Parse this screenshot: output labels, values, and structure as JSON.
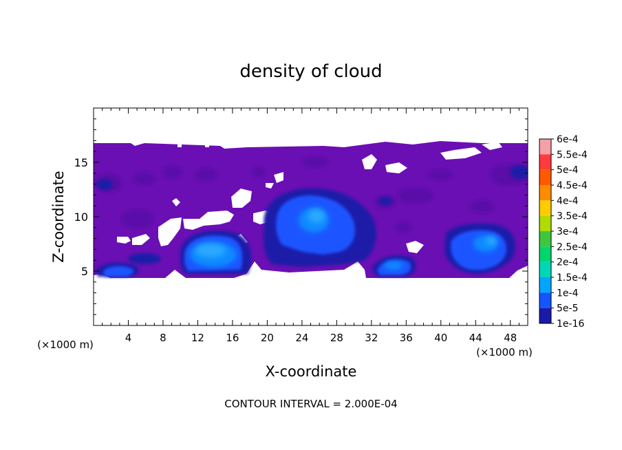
{
  "chart_data": {
    "type": "heatmap",
    "title": "density of cloud",
    "xlabel": "X-coordinate",
    "ylabel": "Z-coordinate",
    "x_unit_left": "(×1000 m)",
    "x_unit_right": "(×1000 m)",
    "footer": "CONTOUR INTERVAL = 2.000E-04",
    "xlim": [
      0,
      50
    ],
    "ylim": [
      0,
      20
    ],
    "x_ticks": [
      4,
      8,
      12,
      16,
      20,
      24,
      28,
      32,
      36,
      40,
      44,
      48
    ],
    "y_ticks": [
      5,
      10,
      15
    ],
    "colorbar": {
      "levels": [
        {
          "label": "6e-4",
          "color": "#f5a0a8"
        },
        {
          "label": "5.5e-4",
          "color": "#ff3b3b"
        },
        {
          "label": "5e-4",
          "color": "#ff5a00"
        },
        {
          "label": "4.5e-4",
          "color": "#ff8c00"
        },
        {
          "label": "4e-4",
          "color": "#ffcc00"
        },
        {
          "label": "3.5e-4",
          "color": "#b0dc00"
        },
        {
          "label": "3e-4",
          "color": "#3fc63f"
        },
        {
          "label": "2.5e-4",
          "color": "#00d66e"
        },
        {
          "label": "2e-4",
          "color": "#00d7b8"
        },
        {
          "label": "1.5e-4",
          "color": "#00a6ff"
        },
        {
          "label": "1e-4",
          "color": "#1455ff"
        },
        {
          "label": "5e-5",
          "color": "#1a1aa8"
        },
        {
          "label": "1e-16",
          "color": "#6a0fb4"
        }
      ]
    },
    "cloud_layer": {
      "x_range": [
        0,
        50
      ],
      "z_range": [
        4.3,
        16.7
      ],
      "base_color": "#6a0fb4"
    },
    "features": [
      {
        "name": "core-12-16",
        "x": [
          10.5,
          16.3
        ],
        "z": [
          5.0,
          8.5
        ],
        "peak_level": "1.5e-4"
      },
      {
        "name": "core-24-26",
        "x": [
          21.0,
          27.5
        ],
        "z": [
          6.5,
          11.5
        ],
        "peak_level": "1.5e-4"
      },
      {
        "name": "core-43-46",
        "x": [
          40.5,
          47.0
        ],
        "z": [
          5.0,
          8.5
        ],
        "peak_level": "1.5e-4"
      },
      {
        "name": "core-34-36",
        "x": [
          33.5,
          37.0
        ],
        "z": [
          5.0,
          6.8
        ],
        "peak_level": "1e-4"
      },
      {
        "name": "core-1-5",
        "x": [
          0.5,
          5.5
        ],
        "z": [
          4.6,
          5.8
        ],
        "peak_level": "1e-4"
      }
    ]
  }
}
